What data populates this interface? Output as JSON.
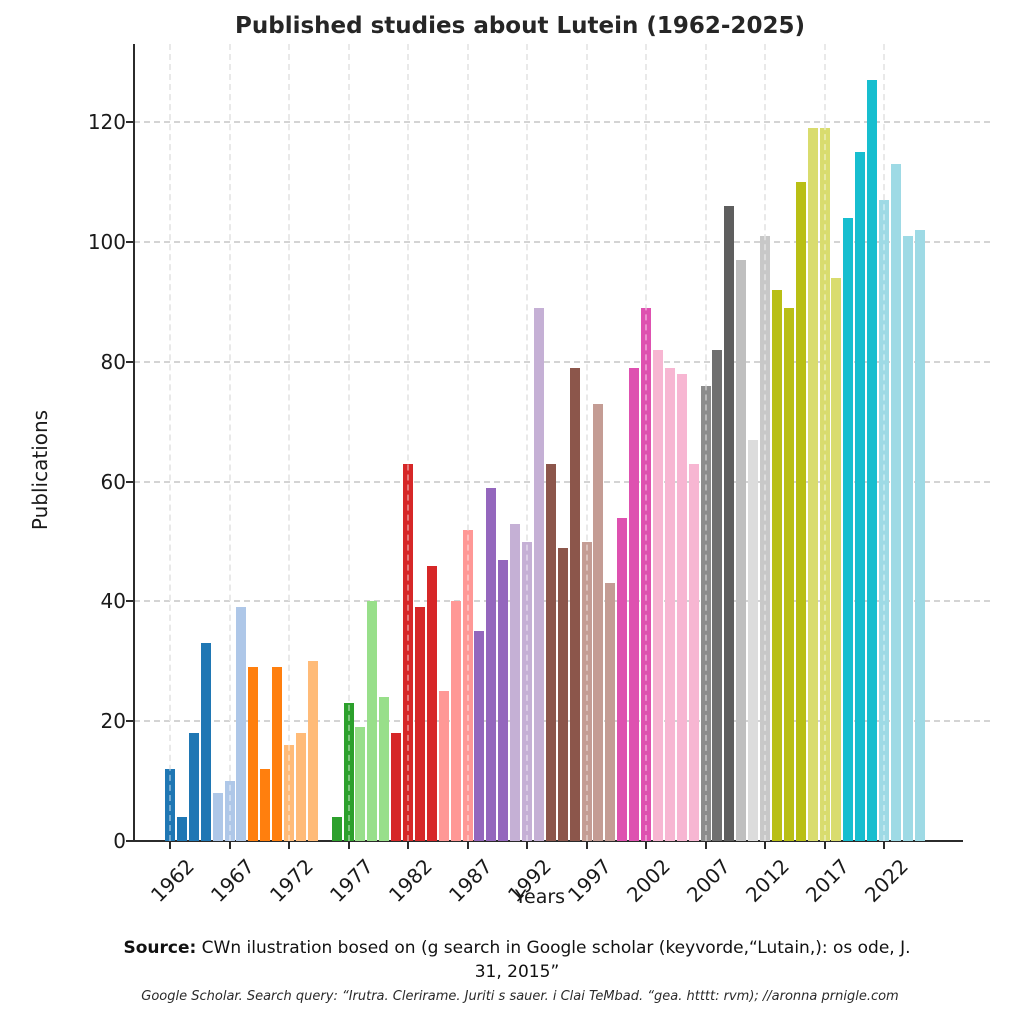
{
  "title": "Published studies about Lutein (1962-2025)",
  "axes": {
    "x_label": "Years",
    "y_label": "Publications",
    "y_ticks": [
      0,
      20,
      40,
      60,
      80,
      100,
      120
    ],
    "x_ticks": [
      1962,
      1967,
      1972,
      1977,
      1982,
      1987,
      1992,
      1997,
      2002,
      2007,
      2012,
      2017,
      2022
    ]
  },
  "source": {
    "prefix": "Source:",
    "line1": " CWn ilustration bosed on (g search in Google scholar (keyvorde,“Lutain,): os ode, J.",
    "line2": "31, 2015”",
    "footnote": "Google Scholar. Search query: “Irutra. Clerirame. Juriti s sauer. i Clai TeMbad. “gea. htttt: rvm); //aronna prnigle.com"
  },
  "chart_data": {
    "type": "bar",
    "title": "Published studies about Lutein (1962-2025)",
    "xlabel": "Years",
    "ylabel": "Publications",
    "ylim": [
      0,
      132
    ],
    "grid": true,
    "legend": "none",
    "missing_years": [
      1975
    ],
    "x": [
      1962,
      1963,
      1964,
      1965,
      1966,
      1967,
      1968,
      1969,
      1970,
      1971,
      1972,
      1973,
      1974,
      1976,
      1977,
      1978,
      1979,
      1980,
      1981,
      1982,
      1983,
      1984,
      1985,
      1986,
      1987,
      1988,
      1989,
      1990,
      1991,
      1992,
      1993,
      1994,
      1995,
      1996,
      1997,
      1998,
      1999,
      2000,
      2001,
      2002,
      2003,
      2004,
      2005,
      2006,
      2007,
      2008,
      2009,
      2010,
      2011,
      2012,
      2013,
      2014,
      2015,
      2016,
      2017,
      2018,
      2019,
      2020,
      2021,
      2022,
      2023,
      2024,
      2025
    ],
    "values": [
      12,
      4,
      18,
      33,
      8,
      10,
      39,
      29,
      12,
      29,
      16,
      18,
      30,
      4,
      23,
      19,
      40,
      24,
      18,
      63,
      39,
      46,
      25,
      40,
      52,
      35,
      59,
      47,
      53,
      50,
      89,
      63,
      49,
      79,
      50,
      73,
      43,
      54,
      79,
      89,
      82,
      79,
      78,
      63,
      76,
      82,
      106,
      97,
      67,
      101,
      92,
      89,
      110,
      119,
      119,
      94,
      104,
      115,
      127,
      107,
      113,
      101,
      102
    ],
    "colors": [
      "#1f77b4",
      "#1f77b4",
      "#1f77b4",
      "#1f77b4",
      "#aec7e8",
      "#aec7e8",
      "#aec7e8",
      "#ff7f0e",
      "#ff7f0e",
      "#ff7f0e",
      "#ffbb78",
      "#ffbb78",
      "#ffbb78",
      "#2ca02c",
      "#2ca02c",
      "#98df8a",
      "#98df8a",
      "#98df8a",
      "#d62728",
      "#d62728",
      "#d62728",
      "#d62728",
      "#ff9896",
      "#ff9896",
      "#ff9896",
      "#9467bd",
      "#9467bd",
      "#9467bd",
      "#c5b0d5",
      "#c5b0d5",
      "#c5b0d5",
      "#8c564b",
      "#8c564b",
      "#8c564b",
      "#c49c94",
      "#c49c94",
      "#c49c94",
      "#de51b0",
      "#de51b0",
      "#de51b0",
      "#f7b6d2",
      "#f7b6d2",
      "#f7b6d2",
      "#f7b6d2",
      "#8c8c8c",
      "#6f6f6f",
      "#5e5e5e",
      "#bfbfbf",
      "#dcdcdc",
      "#c8c8c8",
      "#b9bf15",
      "#b9bf15",
      "#b9bf15",
      "#d9dc6e",
      "#d9dc6e",
      "#d9dc6e",
      "#17becf",
      "#17becf",
      "#17becf",
      "#9edae5",
      "#9edae5",
      "#9edae5",
      "#9edae5"
    ]
  }
}
